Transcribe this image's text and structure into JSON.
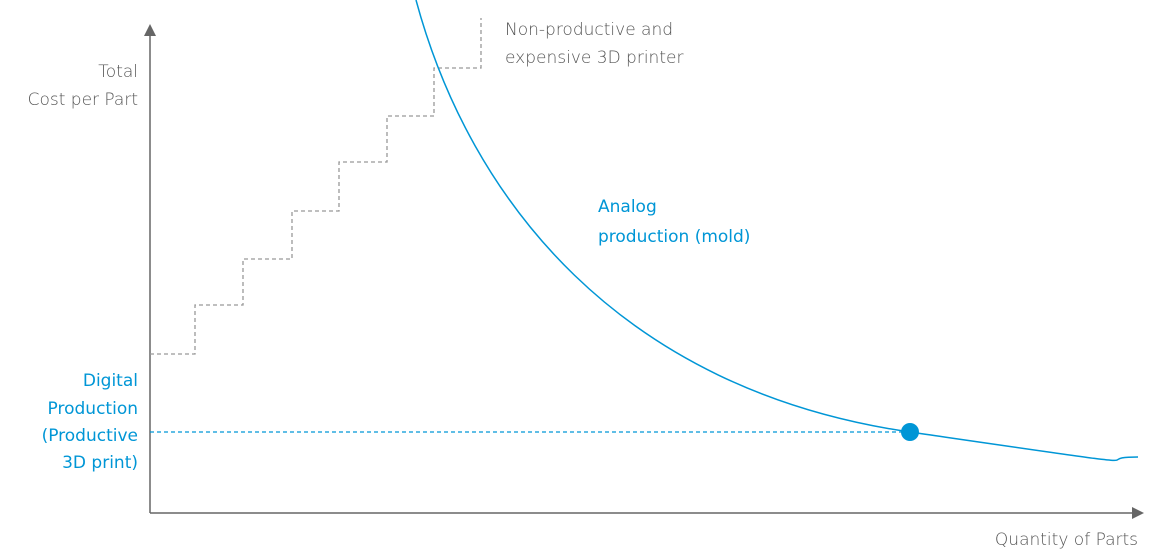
{
  "y_axis_label": [
    "Total",
    "Cost per Part"
  ],
  "x_axis_label": "Quantity of Parts",
  "step_label": [
    "Non-productive and",
    "expensive 3D printer"
  ],
  "curve_label": [
    "Analog",
    "production (mold)"
  ],
  "level_label": [
    "Digital",
    "Production",
    "(Productive",
    "3D print)"
  ]
}
